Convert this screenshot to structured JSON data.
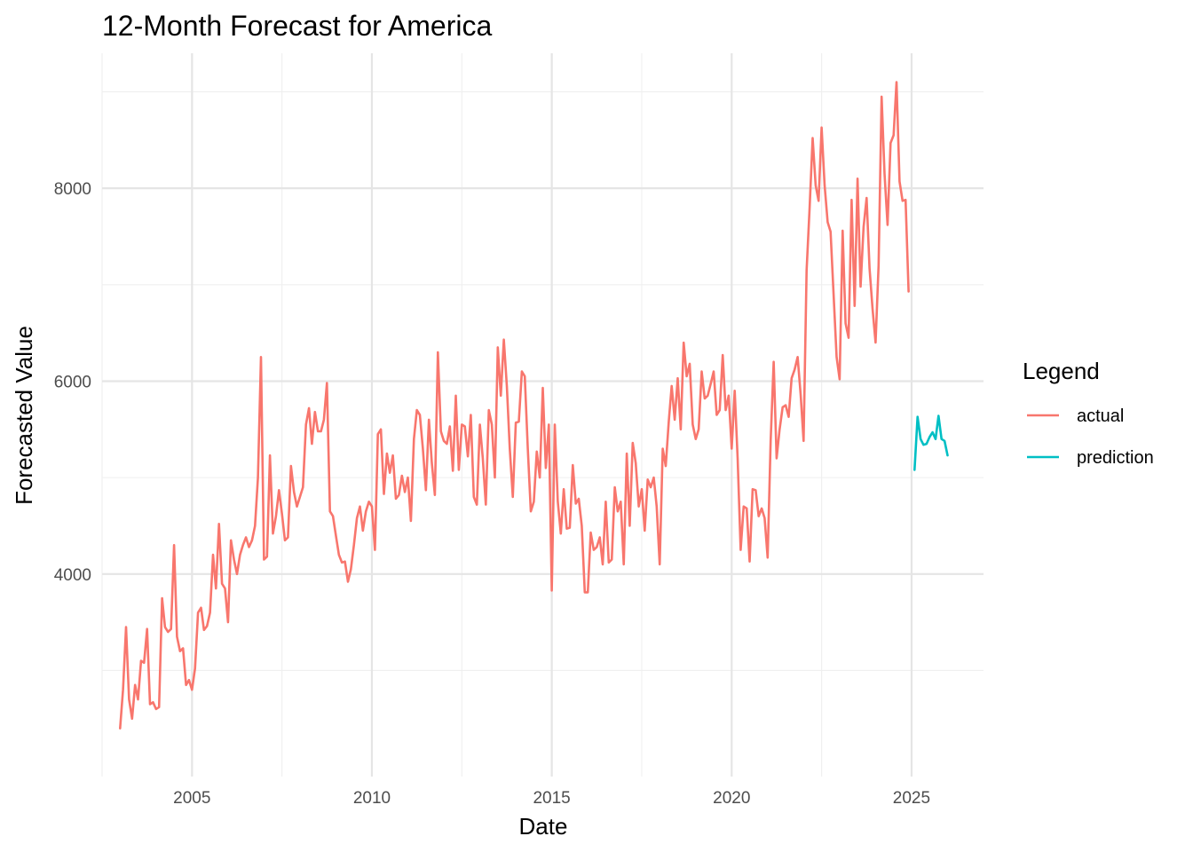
{
  "chart_data": {
    "type": "line",
    "title": "12-Month Forecast for America",
    "xlabel": "Date",
    "ylabel": "Forecasted Value",
    "xlim": [
      2002.5,
      2027.0
    ],
    "ylim": [
      1900,
      9400
    ],
    "x_ticks": [
      2005,
      2010,
      2015,
      2020,
      2025
    ],
    "x_tick_labels": [
      "2005",
      "2010",
      "2015",
      "2020",
      "2025"
    ],
    "y_ticks": [
      4000,
      6000,
      8000
    ],
    "y_tick_labels": [
      "4000",
      "6000",
      "8000"
    ],
    "grid": true,
    "legend": {
      "title": "Legend",
      "position": "right"
    },
    "series": [
      {
        "name": "actual",
        "color": "#F8766D",
        "x_start": 2003.0,
        "x_step": 0.083333,
        "values": [
          2400,
          2800,
          3450,
          2700,
          2500,
          2850,
          2700,
          3100,
          3080,
          3430,
          2650,
          2670,
          2600,
          2620,
          3750,
          3450,
          3400,
          3430,
          4300,
          3350,
          3200,
          3230,
          2850,
          2900,
          2800,
          3020,
          3600,
          3650,
          3420,
          3460,
          3600,
          4200,
          3850,
          4520,
          3900,
          3850,
          3500,
          4350,
          4150,
          4000,
          4200,
          4300,
          4380,
          4280,
          4350,
          4500,
          5000,
          6250,
          4150,
          4180,
          5230,
          4420,
          4600,
          4870,
          4620,
          4350,
          4380,
          5120,
          4850,
          4700,
          4800,
          4900,
          5550,
          5720,
          5350,
          5680,
          5480,
          5480,
          5600,
          5980,
          4650,
          4600,
          4400,
          4200,
          4120,
          4130,
          3920,
          4050,
          4300,
          4580,
          4700,
          4450,
          4650,
          4750,
          4700,
          4250,
          5450,
          5500,
          4830,
          5250,
          5050,
          5230,
          4780,
          4820,
          5020,
          4850,
          5000,
          4550,
          5400,
          5700,
          5650,
          5300,
          4870,
          5600,
          5150,
          4820,
          6300,
          5480,
          5380,
          5350,
          5530,
          5070,
          5850,
          5080,
          5550,
          5530,
          5220,
          5650,
          4800,
          4720,
          5550,
          5200,
          4720,
          5700,
          5550,
          5000,
          6350,
          5850,
          6430,
          5950,
          5300,
          4800,
          5570,
          5580,
          6100,
          6050,
          5300,
          4650,
          4750,
          5270,
          5000,
          5930,
          5100,
          5550,
          3830,
          5550,
          4750,
          4420,
          4880,
          4470,
          4480,
          5130,
          4730,
          4780,
          4500,
          3810,
          3810,
          4430,
          4250,
          4280,
          4380,
          4100,
          4750,
          4120,
          4150,
          4900,
          4650,
          4750,
          4100,
          5250,
          4500,
          5360,
          5150,
          4700,
          4880,
          4450,
          4980,
          4900,
          5000,
          4700,
          4100,
          5300,
          5120,
          5580,
          5950,
          5600,
          6030,
          5500,
          6400,
          6050,
          6180,
          5550,
          5400,
          5500,
          6100,
          5820,
          5850,
          5970,
          6100,
          5650,
          5700,
          6270,
          5700,
          5850,
          5300,
          5900,
          5200,
          4250,
          4700,
          4680,
          4130,
          4880,
          4870,
          4600,
          4680,
          4580,
          4170,
          5380,
          6200,
          5200,
          5500,
          5730,
          5750,
          5630,
          6030,
          6120,
          6250,
          5860,
          5380,
          7150,
          7800,
          8520,
          8030,
          7870,
          8630,
          8030,
          7650,
          7550,
          6900,
          6250,
          6020,
          7560,
          6600,
          6450,
          7880,
          6780,
          8100,
          6980,
          7600,
          7900,
          7170,
          6750,
          6400,
          7200,
          8950,
          8150,
          7620,
          8470,
          8550,
          9100,
          8070,
          7870,
          7880,
          6930
        ]
      },
      {
        "name": "prediction",
        "color": "#00BFC4",
        "x_start": 2025.0833,
        "x_step": 0.083333,
        "values": [
          5080,
          5630,
          5400,
          5340,
          5350,
          5420,
          5470,
          5400,
          5640,
          5400,
          5380,
          5230
        ]
      }
    ]
  }
}
